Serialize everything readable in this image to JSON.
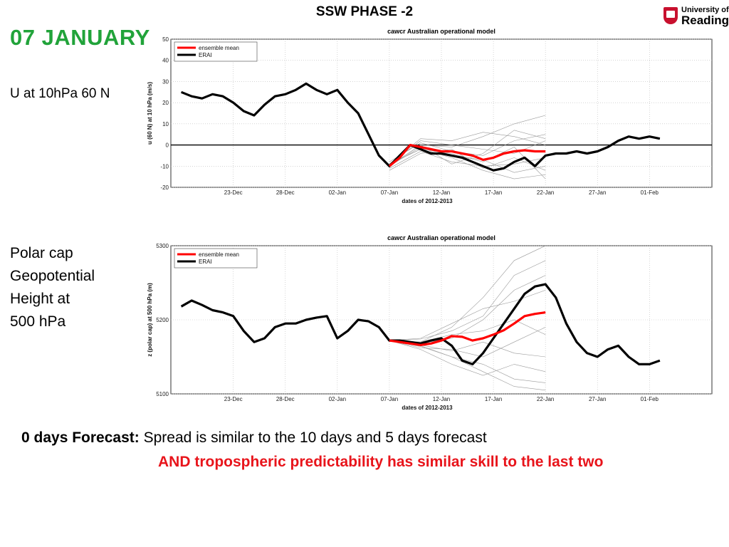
{
  "slide": {
    "title": "SSW PHASE -2",
    "date_heading": "07  JANUARY",
    "u_label": "U at 10hPa 60 N",
    "z_label": "Polar cap\nGeopotential\nHeight at\n500 hPa",
    "logo_line1": "University of",
    "logo_line2": "Reading",
    "forecast_bold": "0 days Forecast:",
    "forecast_text": " Spread is similar to the 10 days and 5 days forecast",
    "conclusion": "AND tropospheric predictability has similar skill to the  last two",
    "accent_green": "#21a33a",
    "accent_red": "#e8141b"
  },
  "chart_data": [
    {
      "type": "line",
      "title": "cawcr Australian operational model",
      "xlabel": "dates of 2012-2013",
      "ylabel": "u (60 N) at 10 hPa (m/s)",
      "ylim": [
        -20,
        50
      ],
      "yticks": [
        -20,
        -10,
        0,
        10,
        20,
        30,
        40,
        50
      ],
      "xlim": [
        -15,
        37
      ],
      "xticks": [
        {
          "label": "23-Dec",
          "day": -9
        },
        {
          "label": "28-Dec",
          "day": -4
        },
        {
          "label": "02-Jan",
          "day": 1
        },
        {
          "label": "07-Jan",
          "day": 6
        },
        {
          "label": "12-Jan",
          "day": 11
        },
        {
          "label": "17-Jan",
          "day": 16
        },
        {
          "label": "22-Jan",
          "day": 21
        },
        {
          "label": "27-Jan",
          "day": 26
        },
        {
          "label": "01-Feb",
          "day": 31
        }
      ],
      "zero_line": true,
      "grid": true,
      "legend": "top-left",
      "series": [
        {
          "name": "ensemble mean",
          "color": "#ff0000",
          "x": [
            6,
            7,
            8,
            9,
            10,
            11,
            12,
            13,
            14,
            15,
            16,
            17,
            18,
            19,
            20,
            21
          ],
          "y": [
            -10,
            -6,
            0,
            -1,
            -2,
            -3,
            -3,
            -4,
            -5,
            -7,
            -6,
            -4,
            -3,
            -2.5,
            -3,
            -3
          ]
        },
        {
          "name": "ERAI",
          "color": "#000000",
          "x": [
            -14,
            -13,
            -12,
            -11,
            -10,
            -9,
            -8,
            -7,
            -6,
            -5,
            -4,
            -3,
            -2,
            -1,
            0,
            1,
            2,
            3,
            4,
            5,
            6,
            7,
            8,
            9,
            10,
            11,
            12,
            13,
            14,
            15,
            16,
            17,
            18,
            19,
            20,
            21,
            22,
            23,
            24,
            25,
            26,
            27,
            28,
            29,
            30,
            31,
            32
          ],
          "y": [
            25,
            23,
            22,
            24,
            23,
            20,
            16,
            14,
            19,
            23,
            24,
            26,
            29,
            26,
            24,
            26,
            20,
            15,
            5,
            -5,
            -10,
            -5,
            0,
            -2,
            -4,
            -4,
            -5,
            -6,
            -8,
            -10,
            -12,
            -11,
            -8,
            -6,
            -10,
            -5,
            -4,
            -4,
            -3,
            -4,
            -3,
            -1,
            2,
            4,
            3,
            4,
            3
          ]
        }
      ],
      "members": [
        {
          "x": [
            6,
            9,
            12,
            15,
            18,
            21
          ],
          "y": [
            -9,
            -2,
            -6,
            -12,
            -16,
            -14
          ]
        },
        {
          "x": [
            6,
            9,
            12,
            15,
            18,
            21
          ],
          "y": [
            -10,
            0,
            -1,
            4,
            10,
            14
          ]
        },
        {
          "x": [
            6,
            9,
            12,
            15,
            18,
            21
          ],
          "y": [
            -8,
            1,
            -3,
            -5,
            2,
            5
          ]
        },
        {
          "x": [
            6,
            9,
            12,
            15,
            18,
            21
          ],
          "y": [
            -11,
            -3,
            -8,
            -10,
            -9,
            -6
          ]
        },
        {
          "x": [
            6,
            9,
            12,
            15,
            18,
            21
          ],
          "y": [
            -9,
            2,
            0,
            -2,
            -4,
            2
          ]
        },
        {
          "x": [
            6,
            9,
            12,
            15,
            18,
            21
          ],
          "y": [
            -10,
            -1,
            -5,
            -7,
            -13,
            -10
          ]
        },
        {
          "x": [
            6,
            9,
            12,
            15,
            18,
            21
          ],
          "y": [
            -9,
            3,
            2,
            6,
            4,
            0
          ]
        },
        {
          "x": [
            6,
            9,
            12,
            15,
            18,
            21
          ],
          "y": [
            -12,
            -4,
            -2,
            -11,
            -6,
            -12
          ]
        },
        {
          "x": [
            6,
            9,
            12,
            15,
            18,
            21
          ],
          "y": [
            -10,
            0,
            -9,
            -4,
            7,
            3
          ]
        },
        {
          "x": [
            6,
            9,
            12,
            15,
            18,
            21
          ],
          "y": [
            -9,
            -2,
            -4,
            -8,
            -1,
            -16
          ]
        }
      ]
    },
    {
      "type": "line",
      "title": "cawcr Australian operational model",
      "xlabel": "dates of 2012-2013",
      "ylabel": "z (polar cap) at 500 hPa (m)",
      "ylim": [
        5100,
        5300
      ],
      "yticks": [
        5100,
        5200,
        5300
      ],
      "xlim": [
        -15,
        37
      ],
      "xticks": [
        {
          "label": "23-Dec",
          "day": -9
        },
        {
          "label": "28-Dec",
          "day": -4
        },
        {
          "label": "02-Jan",
          "day": 1
        },
        {
          "label": "07-Jan",
          "day": 6
        },
        {
          "label": "12-Jan",
          "day": 11
        },
        {
          "label": "17-Jan",
          "day": 16
        },
        {
          "label": "22-Jan",
          "day": 21
        },
        {
          "label": "27-Jan",
          "day": 26
        },
        {
          "label": "01-Feb",
          "day": 31
        }
      ],
      "zero_line": false,
      "grid": true,
      "legend": "top-left",
      "series": [
        {
          "name": "ensemble mean",
          "color": "#ff0000",
          "x": [
            6,
            7,
            8,
            9,
            10,
            11,
            12,
            13,
            14,
            15,
            16,
            17,
            18,
            19,
            20,
            21
          ],
          "y": [
            5172,
            5170,
            5168,
            5166,
            5168,
            5172,
            5178,
            5177,
            5172,
            5175,
            5180,
            5186,
            5195,
            5205,
            5208,
            5210
          ]
        },
        {
          "name": "ERAI",
          "color": "#000000",
          "x": [
            -14,
            -13,
            -12,
            -11,
            -10,
            -9,
            -8,
            -7,
            -6,
            -5,
            -4,
            -3,
            -2,
            -1,
            0,
            1,
            2,
            3,
            4,
            5,
            6,
            7,
            8,
            9,
            10,
            11,
            12,
            13,
            14,
            15,
            16,
            17,
            18,
            19,
            20,
            21,
            22,
            23,
            24,
            25,
            26,
            27,
            28,
            29,
            30,
            31,
            32
          ],
          "y": [
            5218,
            5226,
            5220,
            5213,
            5210,
            5205,
            5185,
            5170,
            5175,
            5190,
            5195,
            5195,
            5200,
            5203,
            5205,
            5175,
            5185,
            5200,
            5198,
            5190,
            5172,
            5172,
            5170,
            5168,
            5172,
            5175,
            5165,
            5145,
            5140,
            5155,
            5175,
            5195,
            5215,
            5235,
            5245,
            5248,
            5230,
            5195,
            5170,
            5155,
            5150,
            5160,
            5165,
            5150,
            5140,
            5140,
            5145
          ]
        }
      ],
      "members": [
        {
          "x": [
            6,
            9,
            12,
            15,
            18,
            21
          ],
          "y": [
            5172,
            5170,
            5190,
            5230,
            5280,
            5300
          ]
        },
        {
          "x": [
            6,
            9,
            12,
            15,
            18,
            21
          ],
          "y": [
            5172,
            5165,
            5150,
            5130,
            5110,
            5105
          ]
        },
        {
          "x": [
            6,
            9,
            12,
            15,
            18,
            21
          ],
          "y": [
            5172,
            5168,
            5175,
            5200,
            5240,
            5260
          ]
        },
        {
          "x": [
            6,
            9,
            12,
            15,
            18,
            21
          ],
          "y": [
            5172,
            5162,
            5160,
            5150,
            5170,
            5190
          ]
        },
        {
          "x": [
            6,
            9,
            12,
            15,
            18,
            21
          ],
          "y": [
            5172,
            5175,
            5195,
            5215,
            5225,
            5240
          ]
        },
        {
          "x": [
            6,
            9,
            12,
            15,
            18,
            21
          ],
          "y": [
            5172,
            5160,
            5140,
            5125,
            5140,
            5130
          ]
        },
        {
          "x": [
            6,
            9,
            12,
            15,
            18,
            21
          ],
          "y": [
            5172,
            5170,
            5180,
            5185,
            5200,
            5180
          ]
        },
        {
          "x": [
            6,
            9,
            12,
            15,
            18,
            21
          ],
          "y": [
            5172,
            5166,
            5158,
            5170,
            5155,
            5150
          ]
        },
        {
          "x": [
            6,
            9,
            12,
            15,
            18,
            21
          ],
          "y": [
            5172,
            5174,
            5185,
            5205,
            5260,
            5280
          ]
        },
        {
          "x": [
            6,
            9,
            12,
            15,
            18,
            21
          ],
          "y": [
            5172,
            5164,
            5150,
            5140,
            5120,
            5115
          ]
        }
      ]
    }
  ]
}
